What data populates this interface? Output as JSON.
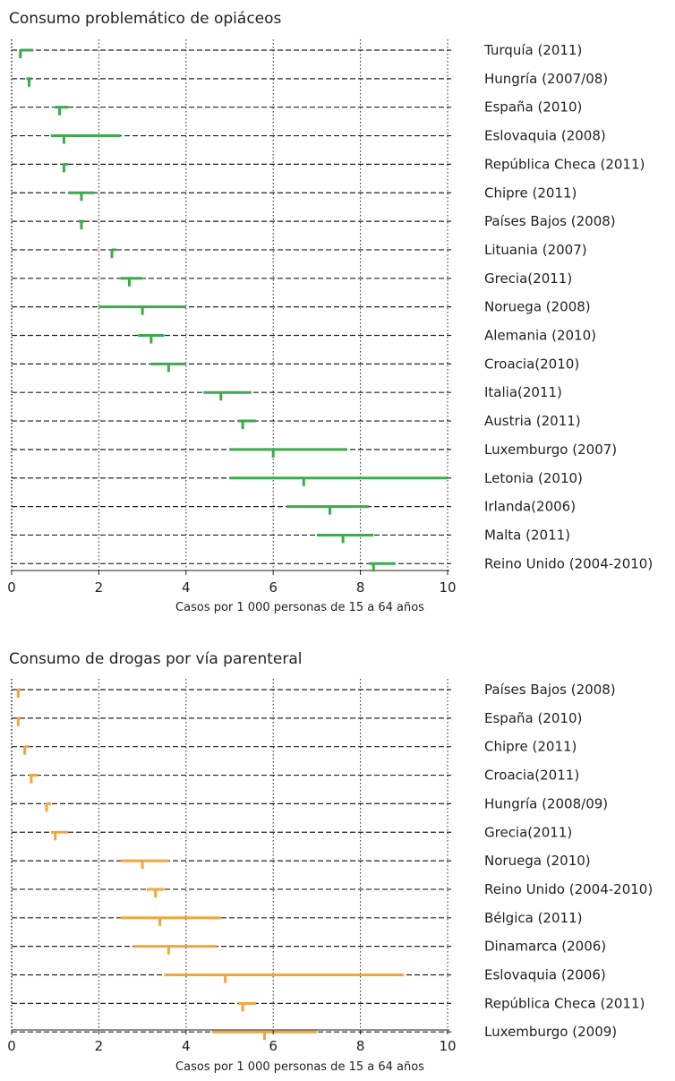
{
  "chart_data": [
    {
      "type": "range",
      "title": "Consumo problemático de opiáceos",
      "xlabel": "Casos por 1 000 personas de 15 a 64 años",
      "xlim": [
        0,
        10
      ],
      "xticks": [
        0,
        2,
        4,
        6,
        8,
        10
      ],
      "color": "#3daa4e",
      "categories": [
        "Turquía (2011)",
        "Hungría (2007/08)",
        "España (2010)",
        "Eslovaquia (2008)",
        "República Checa (2011)",
        "Chipre (2011)",
        "Países Bajos (2008)",
        "Lituania (2007)",
        "Grecia(2011)",
        "Noruega (2008)",
        "Alemania (2010)",
        "Croacia(2010)",
        "Italia(2011)",
        "Austria (2011)",
        "Luxemburgo (2007)",
        "Letonia (2010)",
        "Irlanda(2006)",
        "Malta (2011)",
        "Reino Unido (2004-2010)"
      ],
      "low": [
        0.2,
        0.4,
        1.0,
        0.9,
        1.2,
        1.3,
        1.6,
        2.3,
        2.5,
        2.0,
        2.9,
        3.2,
        4.4,
        5.2,
        5.0,
        5.0,
        6.3,
        7.0,
        8.2
      ],
      "mid": [
        0.2,
        0.4,
        1.1,
        1.2,
        1.2,
        1.6,
        1.6,
        2.3,
        2.7,
        3.0,
        3.2,
        3.6,
        4.8,
        5.3,
        6.0,
        6.7,
        7.3,
        7.6,
        8.3
      ],
      "high": [
        0.5,
        0.4,
        1.3,
        2.5,
        1.3,
        1.9,
        1.6,
        2.4,
        3.0,
        4.0,
        3.5,
        4.0,
        5.5,
        5.6,
        7.7,
        10.0,
        8.2,
        8.3,
        8.8
      ]
    },
    {
      "type": "range",
      "title": "Consumo de drogas por vía parenteral",
      "xlabel": "Casos por 1 000 personas de 15 a 64 años",
      "xlim": [
        0,
        10
      ],
      "xticks": [
        0,
        2,
        4,
        6,
        8,
        10
      ],
      "color": "#f0a63a",
      "categories": [
        "Países Bajos (2008)",
        "España (2010)",
        "Chipre (2011)",
        "Croacia(2011)",
        "Hungría (2008/09)",
        "Grecia(2011)",
        "Noruega (2010)",
        "Reino Unido (2004-2010)",
        "Bélgica (2011)",
        "Dinamarca (2006)",
        "Eslovaquia (2006)",
        "República Checa (2011)",
        "Luxemburgo (2009)"
      ],
      "low": [
        0.15,
        0.15,
        0.3,
        0.4,
        0.8,
        0.9,
        2.5,
        3.1,
        2.5,
        2.8,
        3.5,
        5.2,
        4.6
      ],
      "mid": [
        0.15,
        0.15,
        0.3,
        0.45,
        0.8,
        1.0,
        3.0,
        3.3,
        3.4,
        3.6,
        4.9,
        5.3,
        5.8
      ],
      "high": [
        0.2,
        0.2,
        0.4,
        0.6,
        0.9,
        1.3,
        3.6,
        3.5,
        4.8,
        4.7,
        9.0,
        5.6,
        7.0
      ]
    }
  ]
}
